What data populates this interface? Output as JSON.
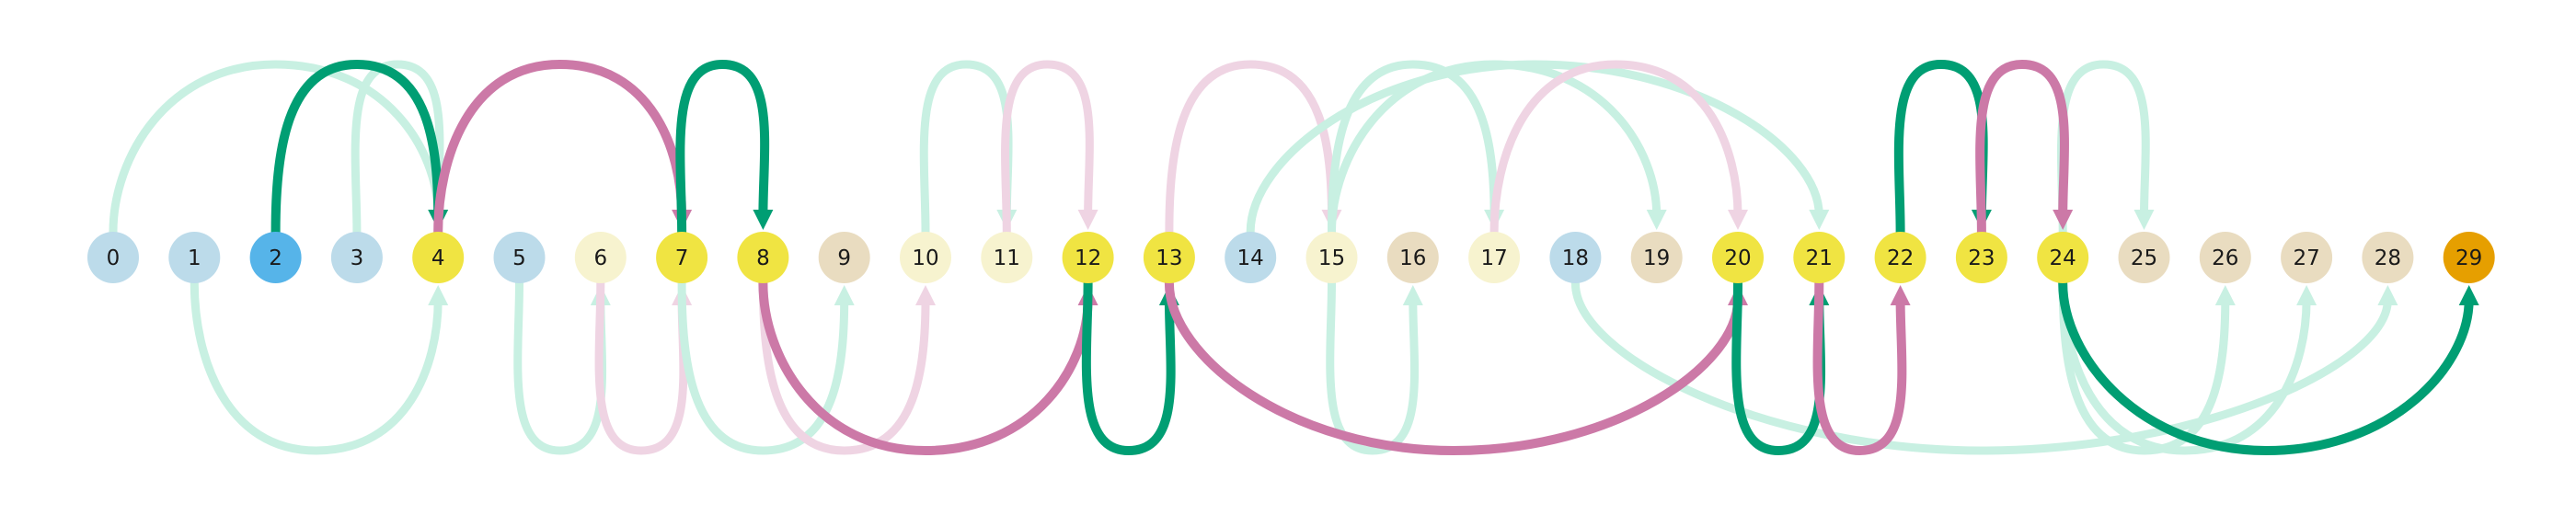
{
  "diagram": {
    "type": "arc-diagram",
    "colors": {
      "green": "#009e73",
      "light_green": "#c8f0e2",
      "pink": "#cc79a7",
      "light_pink": "#efd4e3",
      "yellow": "#f0e442",
      "pale_yellow": "#f7f3cf",
      "blue": "#56b4e9",
      "light_blue": "#bcdbea",
      "beige": "#e9dcc0",
      "orange": "#e69f00"
    },
    "nodes": [
      {
        "id": 0,
        "label": "0",
        "color": "light_blue"
      },
      {
        "id": 1,
        "label": "1",
        "color": "light_blue"
      },
      {
        "id": 2,
        "label": "2",
        "color": "blue"
      },
      {
        "id": 3,
        "label": "3",
        "color": "light_blue"
      },
      {
        "id": 4,
        "label": "4",
        "color": "yellow"
      },
      {
        "id": 5,
        "label": "5",
        "color": "light_blue"
      },
      {
        "id": 6,
        "label": "6",
        "color": "pale_yellow"
      },
      {
        "id": 7,
        "label": "7",
        "color": "yellow"
      },
      {
        "id": 8,
        "label": "8",
        "color": "yellow"
      },
      {
        "id": 9,
        "label": "9",
        "color": "beige"
      },
      {
        "id": 10,
        "label": "10",
        "color": "pale_yellow"
      },
      {
        "id": 11,
        "label": "11",
        "color": "pale_yellow"
      },
      {
        "id": 12,
        "label": "12",
        "color": "yellow"
      },
      {
        "id": 13,
        "label": "13",
        "color": "yellow"
      },
      {
        "id": 14,
        "label": "14",
        "color": "light_blue"
      },
      {
        "id": 15,
        "label": "15",
        "color": "pale_yellow"
      },
      {
        "id": 16,
        "label": "16",
        "color": "beige"
      },
      {
        "id": 17,
        "label": "17",
        "color": "pale_yellow"
      },
      {
        "id": 18,
        "label": "18",
        "color": "light_blue"
      },
      {
        "id": 19,
        "label": "19",
        "color": "beige"
      },
      {
        "id": 20,
        "label": "20",
        "color": "yellow"
      },
      {
        "id": 21,
        "label": "21",
        "color": "yellow"
      },
      {
        "id": 22,
        "label": "22",
        "color": "yellow"
      },
      {
        "id": 23,
        "label": "23",
        "color": "yellow"
      },
      {
        "id": 24,
        "label": "24",
        "color": "yellow"
      },
      {
        "id": 25,
        "label": "25",
        "color": "beige"
      },
      {
        "id": 26,
        "label": "26",
        "color": "beige"
      },
      {
        "id": 27,
        "label": "27",
        "color": "beige"
      },
      {
        "id": 28,
        "label": "28",
        "color": "beige"
      },
      {
        "id": 29,
        "label": "29",
        "color": "orange"
      }
    ],
    "edges": [
      {
        "from": 0,
        "to": 4,
        "side": "above",
        "color": "light_green"
      },
      {
        "from": 3,
        "to": 4,
        "side": "above",
        "color": "light_green"
      },
      {
        "from": 1,
        "to": 4,
        "side": "below",
        "color": "light_green"
      },
      {
        "from": 5,
        "to": 6,
        "side": "below",
        "color": "light_green"
      },
      {
        "from": 6,
        "to": 7,
        "side": "below",
        "color": "light_pink"
      },
      {
        "from": 7,
        "to": 9,
        "side": "below",
        "color": "light_green"
      },
      {
        "from": 8,
        "to": 10,
        "side": "below",
        "color": "light_pink"
      },
      {
        "from": 10,
        "to": 11,
        "side": "above",
        "color": "light_green"
      },
      {
        "from": 11,
        "to": 12,
        "side": "above",
        "color": "light_pink"
      },
      {
        "from": 13,
        "to": 15,
        "side": "above",
        "color": "light_pink"
      },
      {
        "from": 14,
        "to": 21,
        "side": "above",
        "color": "light_green"
      },
      {
        "from": 15,
        "to": 17,
        "side": "above",
        "color": "light_green"
      },
      {
        "from": 15,
        "to": 19,
        "side": "above",
        "color": "light_green"
      },
      {
        "from": 15,
        "to": 16,
        "side": "below",
        "color": "light_green"
      },
      {
        "from": 17,
        "to": 20,
        "side": "above",
        "color": "light_pink"
      },
      {
        "from": 18,
        "to": 28,
        "side": "below",
        "color": "light_green"
      },
      {
        "from": 24,
        "to": 25,
        "side": "above",
        "color": "light_green"
      },
      {
        "from": 24,
        "to": 26,
        "side": "below",
        "color": "light_green"
      },
      {
        "from": 24,
        "to": 27,
        "side": "below",
        "color": "light_green"
      },
      {
        "from": 2,
        "to": 4,
        "side": "above",
        "color": "green"
      },
      {
        "from": 4,
        "to": 7,
        "side": "above",
        "color": "pink"
      },
      {
        "from": 7,
        "to": 8,
        "side": "above",
        "color": "green"
      },
      {
        "from": 8,
        "to": 12,
        "side": "below",
        "color": "pink"
      },
      {
        "from": 12,
        "to": 13,
        "side": "below",
        "color": "green"
      },
      {
        "from": 13,
        "to": 20,
        "side": "below",
        "color": "pink"
      },
      {
        "from": 20,
        "to": 21,
        "side": "below",
        "color": "green"
      },
      {
        "from": 21,
        "to": 22,
        "side": "below",
        "color": "pink"
      },
      {
        "from": 22,
        "to": 23,
        "side": "above",
        "color": "green"
      },
      {
        "from": 23,
        "to": 24,
        "side": "above",
        "color": "pink"
      },
      {
        "from": 24,
        "to": 29,
        "side": "below",
        "color": "green"
      }
    ]
  }
}
